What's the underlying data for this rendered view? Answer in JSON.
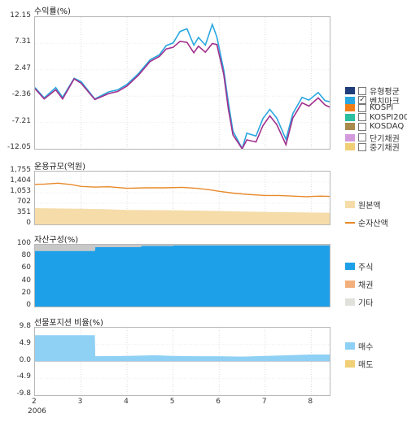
{
  "chart_data": [
    {
      "type": "line",
      "title": "수익률(%)",
      "yticks": [
        "12.15",
        "7.31",
        "2.47",
        "-2.36",
        "-7.21",
        "-12.05"
      ],
      "ylim": [
        -12.05,
        12.15
      ],
      "xlim": [
        2,
        8.4
      ],
      "grid": "vertical dotted",
      "legend": {
        "position": "right",
        "items": [
          {
            "label": "유형평균",
            "color": "#1f3d7a",
            "checked": false
          },
          {
            "label": "벤치마크",
            "color": "#2aa7e0",
            "checked": true
          },
          {
            "label": "KOSPI",
            "color": "#f07f1a",
            "checked": false
          },
          {
            "label": "KOSPI200",
            "color": "#2bbf9f",
            "checked": false
          },
          {
            "label": "KOSDAQ",
            "color": "#a98a4d",
            "checked": false
          },
          {
            "label": "단기채권",
            "color": "#d49bdc",
            "checked": false
          },
          {
            "label": "중기채권",
            "color": "#f0cf76",
            "checked": false
          }
        ]
      },
      "series": [
        {
          "color": "#2aa7e0",
          "x": [
            2.0,
            2.2,
            2.45,
            2.6,
            2.85,
            3.0,
            3.3,
            3.6,
            3.8,
            4.0,
            4.25,
            4.5,
            4.7,
            4.85,
            5.0,
            5.15,
            5.3,
            5.45,
            5.55,
            5.7,
            5.85,
            5.95,
            6.1,
            6.2,
            6.3,
            6.5,
            6.6,
            6.8,
            6.95,
            7.1,
            7.25,
            7.45,
            7.6,
            7.8,
            7.95,
            8.15,
            8.3,
            8.4
          ],
          "y": [
            -0.8,
            -2.7,
            -0.8,
            -2.6,
            0.9,
            0.3,
            -2.9,
            -1.6,
            -1.2,
            -0.2,
            1.8,
            4.3,
            5.2,
            6.9,
            7.4,
            9.5,
            10.0,
            7.0,
            8.4,
            7.0,
            10.8,
            8.5,
            2.4,
            -3.6,
            -8.8,
            -12.0,
            -9.2,
            -9.7,
            -6.5,
            -4.8,
            -6.4,
            -10.3,
            -5.6,
            -2.6,
            -3.1,
            -1.7,
            -3.2,
            -3.4
          ]
        },
        {
          "color": "#a0308c",
          "x": [
            2.0,
            2.2,
            2.45,
            2.6,
            2.85,
            3.0,
            3.3,
            3.6,
            3.8,
            4.0,
            4.25,
            4.5,
            4.7,
            4.85,
            5.0,
            5.15,
            5.3,
            5.45,
            5.55,
            5.7,
            5.85,
            5.95,
            6.1,
            6.2,
            6.3,
            6.5,
            6.6,
            6.8,
            6.95,
            7.1,
            7.25,
            7.45,
            7.6,
            7.8,
            7.95,
            8.15,
            8.3,
            8.4
          ],
          "y": [
            -1.0,
            -2.9,
            -1.2,
            -2.9,
            0.8,
            0.0,
            -3.0,
            -1.9,
            -1.5,
            -0.5,
            1.5,
            4.0,
            4.9,
            6.3,
            6.6,
            7.7,
            7.5,
            5.6,
            6.8,
            5.7,
            7.3,
            7.1,
            1.6,
            -4.8,
            -9.5,
            -12.05,
            -10.4,
            -10.8,
            -7.8,
            -6.0,
            -7.6,
            -11.3,
            -6.4,
            -3.6,
            -4.2,
            -2.7,
            -4.0,
            -4.4
          ]
        }
      ]
    },
    {
      "type": "area",
      "title": "운용규모(억원)",
      "yticks": [
        "1,755",
        "1,404",
        "1,053",
        "702",
        "351",
        "0"
      ],
      "ylim": [
        0,
        1755
      ],
      "xlim": [
        2,
        8.4
      ],
      "legend": {
        "position": "right",
        "items": [
          {
            "label": "원본액",
            "color": "#f5dca9",
            "kind": "area"
          },
          {
            "label": "순자산액",
            "color": "#e88a2b",
            "kind": "line"
          }
        ]
      },
      "series": [
        {
          "name": "원본액",
          "color": "#f5dca9",
          "x": [
            2,
            2.5,
            3,
            3.5,
            4,
            4.5,
            5,
            5.5,
            6,
            6.5,
            7,
            7.5,
            8,
            8.4
          ],
          "y": [
            540,
            530,
            520,
            505,
            480,
            475,
            470,
            460,
            445,
            430,
            415,
            405,
            395,
            390
          ]
        },
        {
          "name": "순자산액",
          "color": "#e88a2b",
          "x": [
            2,
            2.2,
            2.5,
            2.8,
            3,
            3.3,
            3.6,
            4,
            4.4,
            4.8,
            5.2,
            5.5,
            5.8,
            6,
            6.3,
            6.6,
            7,
            7.3,
            7.6,
            7.9,
            8.2,
            8.4
          ],
          "y": [
            1330,
            1340,
            1370,
            1320,
            1260,
            1240,
            1250,
            1200,
            1215,
            1215,
            1230,
            1200,
            1150,
            1100,
            1040,
            1000,
            960,
            960,
            940,
            920,
            940,
            930
          ]
        }
      ]
    },
    {
      "type": "area",
      "title": "자산구성(%)",
      "yticks": [
        "100",
        "80",
        "60",
        "40",
        "20",
        "0"
      ],
      "ylim": [
        0,
        100
      ],
      "xlim": [
        2,
        8.4
      ],
      "legend": {
        "position": "right",
        "items": [
          {
            "label": "주식",
            "color": "#1ea0e8"
          },
          {
            "label": "채권",
            "color": "#f4b07c"
          },
          {
            "label": "기타",
            "color": "#e1e1dc"
          }
        ]
      },
      "series": [
        {
          "name": "주식",
          "color": "#1ea0e8",
          "x": [
            2,
            3.3,
            3.31,
            4.3,
            4.31,
            5,
            5.01,
            8.4
          ],
          "y": [
            90,
            90,
            96,
            96,
            98,
            98,
            99,
            99
          ]
        },
        {
          "name": "기타",
          "color": "#c8c8c8",
          "x": [
            2,
            3.3,
            3.31,
            4.3,
            4.31,
            5,
            5.01,
            8.4
          ],
          "y": [
            10,
            10,
            4,
            4,
            2,
            2,
            1,
            1
          ]
        }
      ]
    },
    {
      "type": "area",
      "title": "선물포지션 비율(%)",
      "yticks": [
        "9.8",
        "4.9",
        "0.0",
        "-4.9",
        "-9.8"
      ],
      "ylim": [
        -9.8,
        9.8
      ],
      "xlim": [
        2,
        8.4
      ],
      "xticks": [
        "2",
        "3",
        "4",
        "5",
        "6",
        "7",
        "8"
      ],
      "xyear": "2006",
      "legend": {
        "position": "right",
        "items": [
          {
            "label": "매수",
            "color": "#8fd0f5"
          },
          {
            "label": "매도",
            "color": "#f0cf76"
          }
        ]
      },
      "series": [
        {
          "name": "매수",
          "color": "#8fd0f5",
          "x": [
            2,
            3.3,
            3.31,
            4.0,
            4.6,
            5.0,
            5.5,
            6.0,
            6.5,
            7.0,
            7.5,
            8.0,
            8.4
          ],
          "y": [
            7.6,
            7.6,
            1.5,
            1.6,
            1.8,
            1.6,
            1.5,
            1.5,
            1.4,
            1.6,
            1.8,
            2.0,
            2.0
          ]
        }
      ]
    }
  ]
}
